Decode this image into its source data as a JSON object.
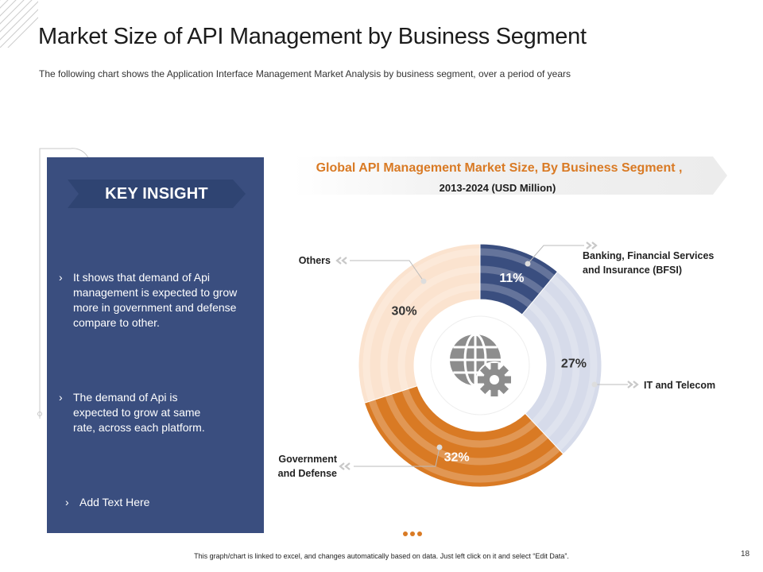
{
  "page": {
    "title": "Market Size of API Management by Business Segment",
    "subtitle": "The following chart shows the Application Interface Management Market Analysis by business segment, over a period of years",
    "footer": "This graph/chart is linked to excel, and changes automatically based on data. Just left click on it and select “Edit Data”.",
    "page_number": "18"
  },
  "insight": {
    "heading": "KEY INSIGHT",
    "chevron": "›",
    "bullets": [
      [
        "It shows that demand of Api",
        "management is expected to grow",
        "more in government and defense",
        "compare to other."
      ],
      [
        "The demand of Api is",
        "expected to grow at same",
        "rate, across each platform."
      ],
      [
        "Add Text Here"
      ]
    ]
  },
  "chart_data": {
    "type": "pie",
    "title": "Global API Management Market Size, By Business Segment ,",
    "subtitle": "2013-2024 (USD Million)",
    "donut": true,
    "center_icon": "globe-gear-icon",
    "slices": [
      {
        "label": [
          "Banking, Financial Services",
          "and Insurance (BFSI)"
        ],
        "value": 11,
        "display": "11%",
        "color": "#3a4e7f"
      },
      {
        "label": [
          "IT and Telecom"
        ],
        "value": 27,
        "display": "27%",
        "color": "#d6dbea"
      },
      {
        "label": [
          "Government",
          "and Defense"
        ],
        "value": 32,
        "display": "32%",
        "color": "#d97a24"
      },
      {
        "label": [
          "Others"
        ],
        "value": 30,
        "display": "30%",
        "color": "#fbe3cf"
      }
    ]
  },
  "colors": {
    "accent_orange": "#d97a24",
    "panel_navy": "#3a4e7f",
    "banner_blue": "#2f4472",
    "banner_gray": "#efefef"
  }
}
